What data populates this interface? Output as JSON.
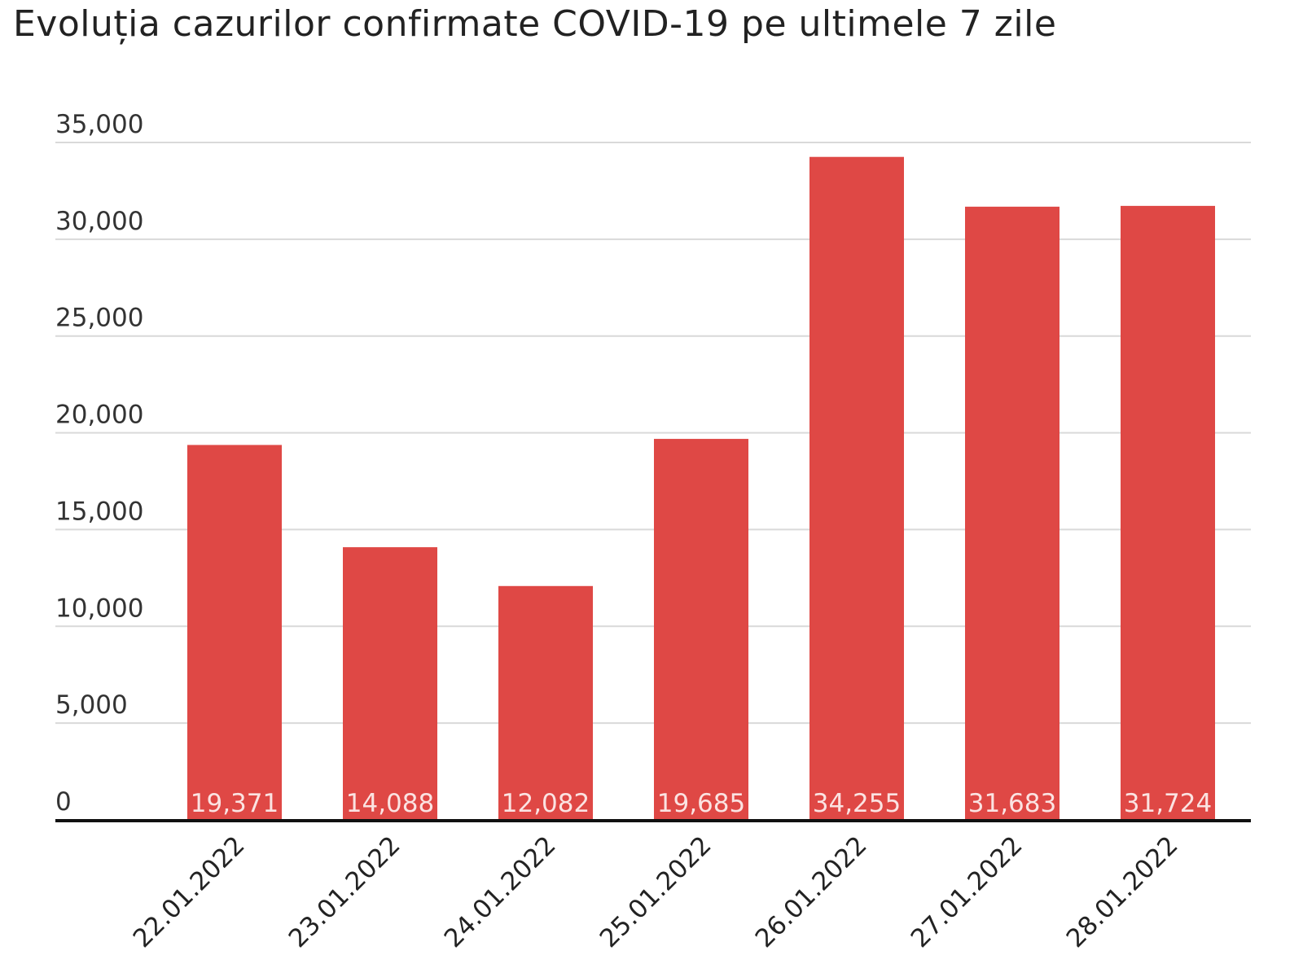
{
  "chart_data": {
    "type": "bar",
    "title": "Evoluția cazurilor confirmate COVID-19 pe ultimele 7 zile",
    "xlabel": "",
    "ylabel": "",
    "categories": [
      "22.01.2022",
      "23.01.2022",
      "24.01.2022",
      "25.01.2022",
      "26.01.2022",
      "27.01.2022",
      "28.01.2022"
    ],
    "values": [
      19371,
      14088,
      12082,
      19685,
      34255,
      31683,
      31724
    ],
    "data_labels": [
      "19,371",
      "14,088",
      "12,082",
      "19,685",
      "34,255",
      "31,683",
      "31,724"
    ],
    "ylim": [
      0,
      35000
    ],
    "yticks": [
      0,
      5000,
      10000,
      15000,
      20000,
      25000,
      30000,
      35000
    ],
    "ytick_labels": [
      "0",
      "5,000",
      "10,000",
      "15,000",
      "20,000",
      "25,000",
      "30,000",
      "35,000"
    ],
    "grid": true,
    "legend": "none",
    "bar_color": "#df4845",
    "grid_color": "#d9d9d9",
    "axis_color": "#111111"
  }
}
